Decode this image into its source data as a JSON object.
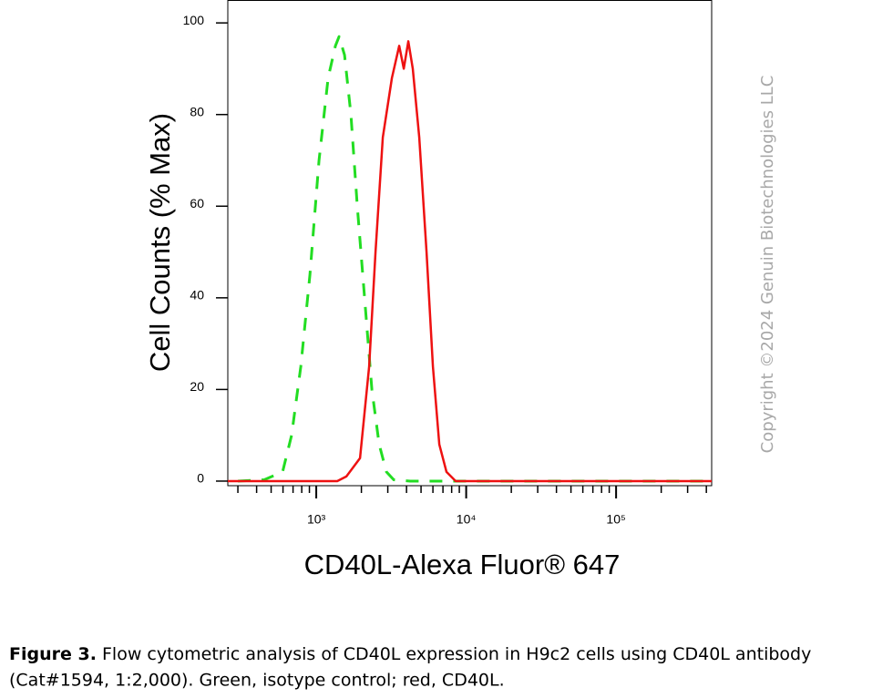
{
  "chart_data": {
    "type": "line",
    "y_label": "Cell Counts (% Max)",
    "x_label": "CD40L-Alexa Fluor® 647",
    "watermark": "Copyright ©2024 Genuin Biotechnologies LLC",
    "x_log": true,
    "log_minor_ticks": true,
    "xlim": [
      257,
      434000
    ],
    "xticks": [
      {
        "value": 1000,
        "label": "10³"
      },
      {
        "value": 10000,
        "label": "10⁴"
      },
      {
        "value": 100000,
        "label": "10⁵"
      }
    ],
    "ylim": [
      -1,
      105
    ],
    "yticks": [
      0,
      20,
      40,
      60,
      80,
      100
    ],
    "series": [
      {
        "color": "#22dd22",
        "dashed": true,
        "x": [
          300,
          450,
          596,
          685,
          788,
          907,
          1043,
          1200,
          1342,
          1419,
          1543,
          1702,
          1877,
          2099,
          2349,
          2627,
          2938,
          3287,
          4227,
          400000
        ],
        "values": [
          0,
          0.3,
          2,
          10,
          25,
          45,
          70,
          88,
          95,
          97,
          93,
          80,
          60,
          40,
          20,
          8,
          2,
          0.3,
          0,
          0
        ]
      },
      {
        "color": "#ee1111",
        "dashed": false,
        "x": [
          257,
          1380,
          1587,
          1958,
          2252,
          2483,
          2779,
          3196,
          3573,
          3833,
          4111,
          4406,
          4863,
          5440,
          5998,
          6617,
          7396,
          8511,
          434000
        ],
        "values": [
          0,
          0,
          1,
          5,
          25,
          50,
          75,
          88,
          95,
          90,
          96,
          90,
          75,
          50,
          25,
          8,
          2,
          0,
          0
        ]
      }
    ]
  },
  "caption": {
    "label": "Figure 3.",
    "lines": [
      "Flow cytometric analysis of CD40L expression in H9c2 cells using CD40L antibody",
      "(Cat#1594, 1:2,000). Green, isotype control; red, CD40L."
    ]
  }
}
